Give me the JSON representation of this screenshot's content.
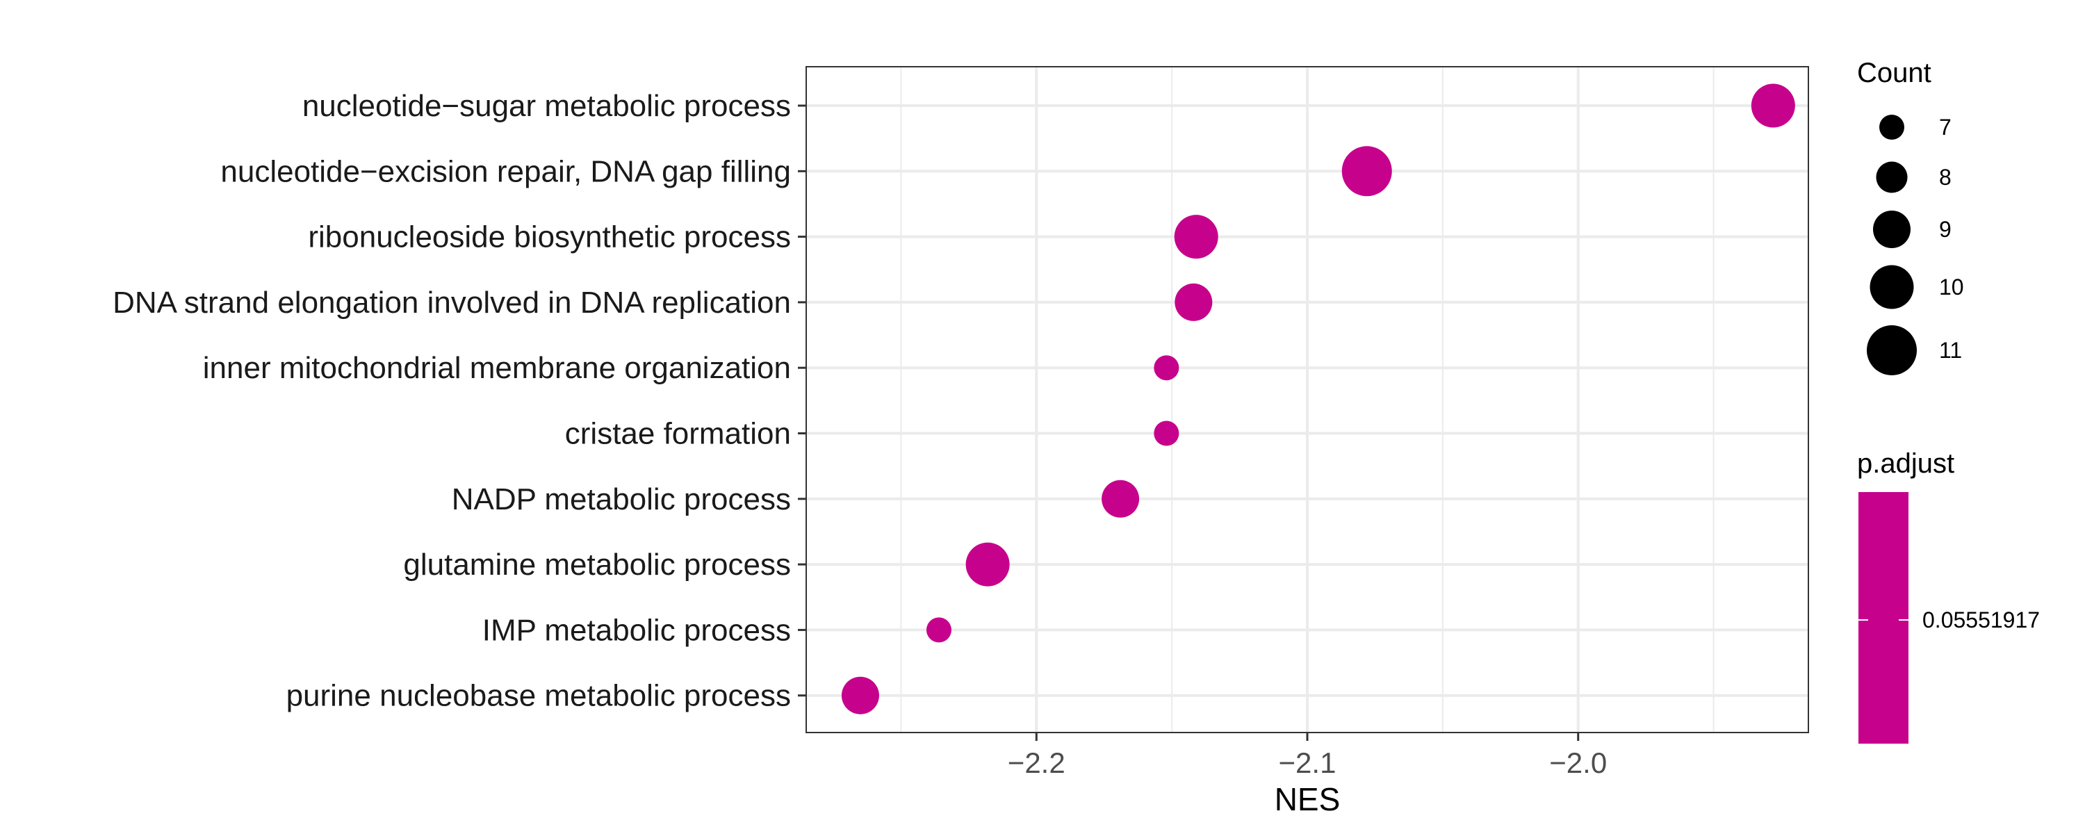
{
  "chart_data": {
    "type": "scatter",
    "xlabel": "NES",
    "x_ticks": [
      -2.2,
      -2.1,
      -2.0
    ],
    "x_tick_labels": [
      "−2.2",
      "−2.1",
      "−2.0"
    ],
    "xlim": [
      -2.285,
      -1.915
    ],
    "grid": true,
    "categories": [
      "nucleotide−sugar metabolic process",
      "nucleotide−excision repair, DNA gap filling",
      "ribonucleoside biosynthetic process",
      "DNA strand elongation involved in DNA replication",
      "inner mitochondrial membrane organization",
      "cristae formation",
      "NADP metabolic process",
      "glutamine metabolic process",
      "IMP metabolic process",
      "purine nucleobase metabolic process"
    ],
    "points": [
      {
        "category": "nucleotide−sugar metabolic process",
        "nes": -1.928,
        "count": 10
      },
      {
        "category": "nucleotide−excision repair, DNA gap filling",
        "nes": -2.078,
        "count": 11
      },
      {
        "category": "ribonucleoside biosynthetic process",
        "nes": -2.141,
        "count": 10
      },
      {
        "category": "DNA strand elongation involved in DNA replication",
        "nes": -2.142,
        "count": 9
      },
      {
        "category": "inner mitochondrial membrane organization",
        "nes": -2.152,
        "count": 7
      },
      {
        "category": "cristae formation",
        "nes": -2.152,
        "count": 7
      },
      {
        "category": "NADP metabolic process",
        "nes": -2.169,
        "count": 9
      },
      {
        "category": "glutamine metabolic process",
        "nes": -2.218,
        "count": 10
      },
      {
        "category": "IMP metabolic process",
        "nes": -2.236,
        "count": 7
      },
      {
        "category": "purine nucleobase metabolic process",
        "nes": -2.265,
        "count": 9
      }
    ],
    "size_legend": {
      "title": "Count",
      "values": [
        7,
        8,
        9,
        10,
        11
      ],
      "labels": [
        "7",
        "8",
        "9",
        "10",
        "11"
      ]
    },
    "color_legend": {
      "title": "p.adjust",
      "label": "0.05551917"
    },
    "legend_position": "right",
    "colors": {
      "point": "#c6028c",
      "grid": "#ebebeb",
      "panel_border": "#333333"
    }
  }
}
